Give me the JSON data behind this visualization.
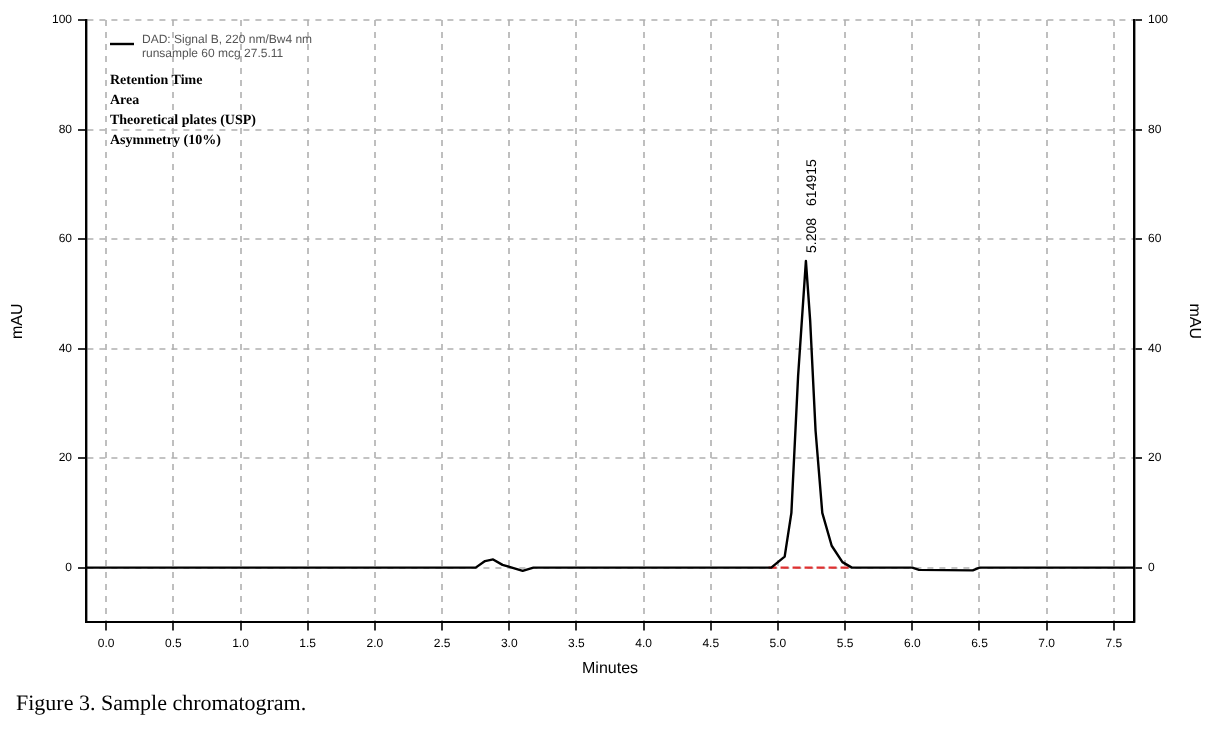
{
  "chart_data": {
    "type": "line",
    "xlabel": "Minutes",
    "ylabel": "mAU",
    "y2label": "mAU",
    "xlim": [
      -0.15,
      7.65
    ],
    "xticks": [
      {
        "value": 0,
        "label": "0.0"
      },
      {
        "value": 0.5,
        "label": "0.5"
      },
      {
        "value": 1,
        "label": "1.0"
      },
      {
        "value": 1.5,
        "label": "1.5"
      },
      {
        "value": 2,
        "label": "2.0"
      },
      {
        "value": 2.5,
        "label": "2.5"
      },
      {
        "value": 3,
        "label": "3.0"
      },
      {
        "value": 3.5,
        "label": "3.5"
      },
      {
        "value": 4,
        "label": "4.0"
      },
      {
        "value": 4.5,
        "label": "4.5"
      },
      {
        "value": 5,
        "label": "5.0"
      },
      {
        "value": 5.5,
        "label": "5.5"
      },
      {
        "value": 6,
        "label": "6.0"
      },
      {
        "value": 6.5,
        "label": "6.5"
      },
      {
        "value": 7,
        "label": "7.0"
      },
      {
        "value": 7.5,
        "label": "7.5"
      }
    ],
    "ylim": [
      -10,
      100
    ],
    "yticks": [
      0,
      20,
      40,
      60,
      80,
      100
    ],
    "y2lim": [
      -10,
      100
    ],
    "y2ticks": [
      0,
      20,
      40,
      60,
      80,
      100
    ],
    "grid": true,
    "legend": "top left",
    "marker": "none",
    "series": [
      {
        "name": "DAD: Signal B, 220 nm/Bw4 nm",
        "color": "#000000",
        "x": [
          -0.15,
          2.75,
          2.82,
          2.88,
          2.95,
          3.02,
          3.1,
          3.18,
          4.95,
          5.05,
          5.1,
          5.15,
          5.208,
          5.24,
          5.28,
          5.33,
          5.4,
          5.48,
          5.55,
          6.0,
          6.05,
          6.45,
          6.5,
          7.65
        ],
        "values": [
          0,
          0,
          1.2,
          1.5,
          0.5,
          0,
          -0.6,
          0,
          0,
          2,
          10,
          35,
          56,
          45,
          25,
          10,
          4,
          1,
          0,
          0,
          -0.4,
          -0.5,
          0,
          0
        ]
      },
      {
        "color": "#e03030",
        "line_style": "dashed",
        "x": [
          4.93,
          5.53
        ],
        "values": [
          0,
          0
        ]
      }
    ],
    "annotations": [
      "runsample 60 mcg 27.5.11",
      "Retention Time",
      "Area",
      "Theoretical plates (USP)",
      "Asymmetry (10%)",
      {
        "text": "5.208",
        "x": 5.208,
        "y": 56
      },
      "614915",
      "Figure 3. Sample chromatogram."
    ]
  }
}
